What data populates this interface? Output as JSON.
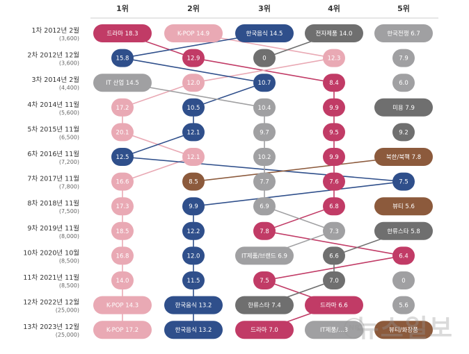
{
  "colors": {
    "drama": "#c13b66",
    "kpop": "#e9a9b4",
    "korean_food": "#2f4f8b",
    "electronics": "#6f6f6f",
    "it": "#a0a0a2",
    "beauty": "#8c5a3c",
    "north_korea": "#8c5a3c",
    "hallyu_star": "#6f6f6f",
    "korean_war": "#a0a0a2",
    "light_gray": "#bdbdbf"
  },
  "watermark": {
    "text": "뉴스일보",
    "logo": "NR"
  },
  "chart_data": {
    "type": "table",
    "rank_headers": [
      "1위",
      "2위",
      "3위",
      "4위",
      "5위"
    ],
    "rows": [
      {
        "label": "1차 2012년 2월",
        "sub": "(3,600)",
        "cells": [
          {
            "text": "드라마 18.3",
            "color": "#c13b66",
            "wide": true
          },
          {
            "text": "K-POP 14.9",
            "color": "#e9a9b4",
            "wide": true
          },
          {
            "text": "한국음식 14.5",
            "color": "#2f4f8b",
            "wide": true
          },
          {
            "text": "전자제품 14.0",
            "color": "#6f6f6f",
            "wide": true
          },
          {
            "text": "한국전쟁 6.7",
            "color": "#a0a0a2",
            "wide": true
          }
        ]
      },
      {
        "label": "2차 2012년 12월",
        "sub": "(3,600)",
        "cells": [
          {
            "text": "15.8",
            "color": "#2f4f8b"
          },
          {
            "text": "12.9",
            "color": "#c13b66"
          },
          {
            "text": "0",
            "color": "#6f6f6f"
          },
          {
            "text": "12.3",
            "color": "#e9a9b4"
          },
          {
            "text": "7.9",
            "color": "#a0a0a2"
          }
        ]
      },
      {
        "label": "3차 2014년 2월",
        "sub": "(4,400)",
        "cells": [
          {
            "text": "IT 산업 14.5",
            "color": "#a0a0a2",
            "wide": true
          },
          {
            "text": "12.0",
            "color": "#e9a9b4"
          },
          {
            "text": "10.7",
            "color": "#2f4f8b"
          },
          {
            "text": "8.4",
            "color": "#c13b66"
          },
          {
            "text": "6.0",
            "color": "#a0a0a2"
          }
        ]
      },
      {
        "label": "4차 2014년 11월",
        "sub": "(5,600)",
        "cells": [
          {
            "text": "17.2",
            "color": "#e9a9b4"
          },
          {
            "text": "10.5",
            "color": "#2f4f8b"
          },
          {
            "text": "10.4",
            "color": "#a0a0a2"
          },
          {
            "text": "9.9",
            "color": "#c13b66"
          },
          {
            "text": "미용 7.9",
            "color": "#6f6f6f",
            "wide": true
          }
        ]
      },
      {
        "label": "5차 2015년 11월",
        "sub": "(6,500)",
        "cells": [
          {
            "text": "20.1",
            "color": "#e9a9b4"
          },
          {
            "text": "12.1",
            "color": "#2f4f8b"
          },
          {
            "text": "9.7",
            "color": "#a0a0a2"
          },
          {
            "text": "9.5",
            "color": "#c13b66"
          },
          {
            "text": "9.2",
            "color": "#6f6f6f"
          }
        ]
      },
      {
        "label": "6차 2016년 11월",
        "sub": "(7,200)",
        "cells": [
          {
            "text": "12.5",
            "color": "#2f4f8b"
          },
          {
            "text": "12.1",
            "color": "#e9a9b4"
          },
          {
            "text": "10.2",
            "color": "#a0a0a2"
          },
          {
            "text": "9.9",
            "color": "#c13b66"
          },
          {
            "text": "북한/북핵 7.8",
            "color": "#8c5a3c",
            "wide": true
          }
        ]
      },
      {
        "label": "7차 2017년 11월",
        "sub": "(7,800)",
        "cells": [
          {
            "text": "16.6",
            "color": "#e9a9b4"
          },
          {
            "text": "8.5",
            "color": "#8c5a3c"
          },
          {
            "text": "7.7",
            "color": "#a0a0a2"
          },
          {
            "text": "7.6",
            "color": "#c13b66"
          },
          {
            "text": "7.5",
            "color": "#2f4f8b"
          }
        ]
      },
      {
        "label": "8차 2018년 11월",
        "sub": "(7,500)",
        "cells": [
          {
            "text": "17.3",
            "color": "#e9a9b4"
          },
          {
            "text": "9.9",
            "color": "#2f4f8b"
          },
          {
            "text": "6.9",
            "color": "#a0a0a2"
          },
          {
            "text": "6.8",
            "color": "#c13b66"
          },
          {
            "text": "뷰티 5.6",
            "color": "#8c5a3c",
            "wide": true
          }
        ]
      },
      {
        "label": "9차 2019년 11월",
        "sub": "(8,000)",
        "cells": [
          {
            "text": "18.5",
            "color": "#e9a9b4"
          },
          {
            "text": "12.2",
            "color": "#2f4f8b"
          },
          {
            "text": "7.8",
            "color": "#c13b66"
          },
          {
            "text": "7.3",
            "color": "#a0a0a2"
          },
          {
            "text": "한류스타 5.8",
            "color": "#6f6f6f",
            "wide": true
          }
        ]
      },
      {
        "label": "10차 2020년 10월",
        "sub": "(8,500)",
        "cells": [
          {
            "text": "16.8",
            "color": "#e9a9b4"
          },
          {
            "text": "12.0",
            "color": "#2f4f8b"
          },
          {
            "text": "IT제품/브랜드 6.9",
            "color": "#a0a0a2",
            "wide": true
          },
          {
            "text": "6.6",
            "color": "#6f6f6f"
          },
          {
            "text": "6.4",
            "color": "#c13b66"
          }
        ]
      },
      {
        "label": "11차 2021년 11월",
        "sub": "(8,500)",
        "cells": [
          {
            "text": "14.0",
            "color": "#e9a9b4"
          },
          {
            "text": "11.5",
            "color": "#2f4f8b"
          },
          {
            "text": "7.5",
            "color": "#c13b66"
          },
          {
            "text": "7.0",
            "color": "#6f6f6f"
          },
          {
            "text": "0",
            "color": "#a0a0a2"
          }
        ]
      },
      {
        "label": "12차 2022년 12월",
        "sub": "(25,000)",
        "cells": [
          {
            "text": "K-POP 14.3",
            "color": "#e9a9b4",
            "wide": true
          },
          {
            "text": "한국음식 13.2",
            "color": "#2f4f8b",
            "wide": true
          },
          {
            "text": "한류스타 7.4",
            "color": "#6f6f6f",
            "wide": true
          },
          {
            "text": "드라마 6.6",
            "color": "#c13b66",
            "wide": true
          },
          {
            "text": "5.6",
            "color": "#a0a0a2"
          }
        ]
      },
      {
        "label": "13차 2023년 12월",
        "sub": "(25,000)",
        "cells": [
          {
            "text": "K-POP 17.2",
            "color": "#e9a9b4",
            "wide": true
          },
          {
            "text": "한국음식 13.2",
            "color": "#2f4f8b",
            "wide": true
          },
          {
            "text": "드라마 7.0",
            "color": "#c13b66",
            "wide": true
          },
          {
            "text": "IT제품/…3",
            "color": "#a0a0a2",
            "wide": true
          },
          {
            "text": "뷰티/화장품",
            "color": "#8c5a3c",
            "wide": true
          }
        ]
      }
    ],
    "connections": [
      {
        "color": "#c13b66",
        "path": [
          [
            0,
            0
          ],
          [
            1,
            1
          ],
          [
            2,
            3
          ],
          [
            3,
            3
          ],
          [
            4,
            3
          ],
          [
            5,
            3
          ],
          [
            6,
            3
          ],
          [
            7,
            3
          ],
          [
            8,
            2
          ],
          [
            9,
            4
          ],
          [
            10,
            2
          ],
          [
            11,
            3
          ],
          [
            12,
            2
          ]
        ]
      },
      {
        "color": "#e9a9b4",
        "path": [
          [
            0,
            1
          ],
          [
            1,
            3
          ],
          [
            2,
            1
          ],
          [
            3,
            0
          ],
          [
            4,
            0
          ],
          [
            5,
            1
          ],
          [
            6,
            0
          ],
          [
            7,
            0
          ],
          [
            8,
            0
          ],
          [
            9,
            0
          ],
          [
            10,
            0
          ],
          [
            11,
            0
          ],
          [
            12,
            0
          ]
        ]
      },
      {
        "color": "#2f4f8b",
        "path": [
          [
            0,
            2
          ],
          [
            1,
            0
          ],
          [
            2,
            2
          ],
          [
            3,
            1
          ],
          [
            4,
            1
          ],
          [
            5,
            0
          ],
          [
            6,
            4
          ],
          [
            7,
            1
          ],
          [
            8,
            1
          ],
          [
            9,
            1
          ],
          [
            10,
            1
          ],
          [
            11,
            1
          ],
          [
            12,
            1
          ]
        ]
      },
      {
        "color": "#6f6f6f",
        "path": [
          [
            0,
            3
          ],
          [
            1,
            2
          ]
        ]
      },
      {
        "color": "#a0a0a2",
        "path": [
          [
            2,
            0
          ],
          [
            3,
            2
          ],
          [
            4,
            2
          ],
          [
            5,
            2
          ],
          [
            6,
            2
          ],
          [
            7,
            2
          ],
          [
            8,
            3
          ],
          [
            9,
            2
          ]
        ]
      },
      {
        "color": "#8c5a3c",
        "path": [
          [
            5,
            4
          ],
          [
            6,
            1
          ]
        ]
      },
      {
        "color": "#6f6f6f",
        "path": [
          [
            8,
            4
          ],
          [
            9,
            3
          ],
          [
            10,
            3
          ],
          [
            11,
            2
          ]
        ]
      }
    ]
  }
}
